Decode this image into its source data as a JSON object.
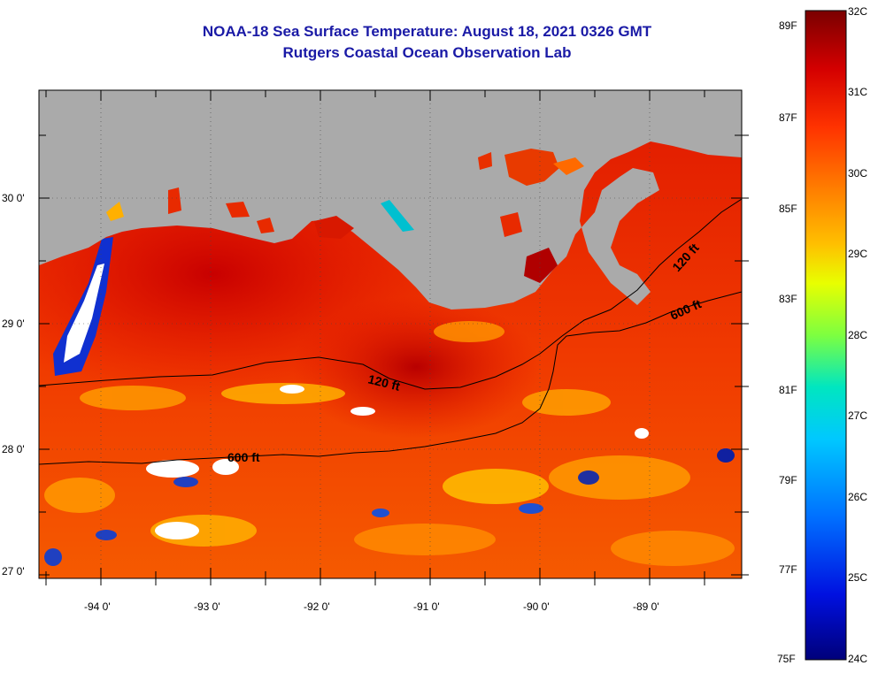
{
  "title_line1": "NOAA-18 Sea Surface Temperature:  August 18, 2021 0326 GMT",
  "title_line2": "Rutgers Coastal Ocean Observation Lab",
  "map": {
    "lon_labels": [
      "-94 0'",
      "-93 0'",
      "-92 0'",
      "-91 0'",
      "-90 0'",
      "-89 0'"
    ],
    "lat_labels": [
      "30 0'",
      "29 0'",
      "28 0'",
      "27 0'"
    ],
    "contours": [
      "120 ft",
      "600 ft",
      "120 ft",
      "600 ft"
    ],
    "land_color": "#aaaaaa"
  },
  "colorbar": {
    "fahrenheit": [
      "89F",
      "87F",
      "85F",
      "83F",
      "81F",
      "79F",
      "77F",
      "75F"
    ],
    "celsius": [
      "32C",
      "31C",
      "30C",
      "29C",
      "28C",
      "27C",
      "26C",
      "25C",
      "24C"
    ],
    "stops": [
      "#7a0000",
      "#d40000",
      "#ff3300",
      "#ff7a00",
      "#ffc000",
      "#e8ff00",
      "#7dff40",
      "#00e6c0",
      "#00c8ff",
      "#0070ff",
      "#0010e0",
      "#00007a"
    ]
  }
}
